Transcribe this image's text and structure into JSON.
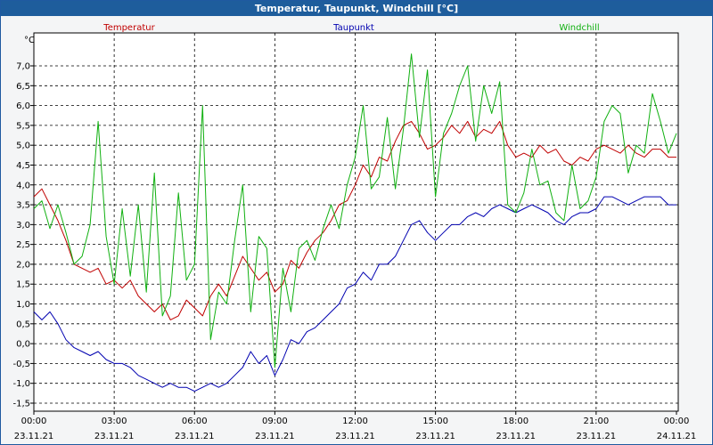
{
  "title": "Temperatur, Taupunkt, Windchill [°C]",
  "chart_data": {
    "type": "line",
    "title": "Temperatur, Taupunkt, Windchill [°C]",
    "ylabel": "°C",
    "ylim": [
      -1.6,
      8.2
    ],
    "yticks": [
      7.0,
      6.5,
      6.0,
      5.5,
      5.0,
      4.5,
      4.0,
      3.5,
      3.0,
      2.5,
      2.0,
      1.5,
      1.0,
      0.5,
      0.0,
      -0.5,
      -1.0,
      -1.5
    ],
    "ytick_labels": [
      "7,0",
      "6,5",
      "6,0",
      "5,5",
      "5,0",
      "4,5",
      "4,0",
      "3,5",
      "3,0",
      "2,5",
      "2,0",
      "1,5",
      "1,0",
      "0,5",
      "0,0",
      "-0,5",
      "-1,0",
      "-1,5"
    ],
    "xlim_hours": [
      0,
      24
    ],
    "xticks": [
      {
        "time": "00:00",
        "date": "23.11.21",
        "hour": 0
      },
      {
        "time": "03:00",
        "date": "23.11.21",
        "hour": 3
      },
      {
        "time": "06:00",
        "date": "23.11.21",
        "hour": 6
      },
      {
        "time": "09:00",
        "date": "23.11.21",
        "hour": 9
      },
      {
        "time": "12:00",
        "date": "23.11.21",
        "hour": 12
      },
      {
        "time": "15:00",
        "date": "23.11.21",
        "hour": 15
      },
      {
        "time": "18:00",
        "date": "23.11.21",
        "hour": 18
      },
      {
        "time": "21:00",
        "date": "23.11.21",
        "hour": 21
      },
      {
        "time": "00:00",
        "date": "24.11.21",
        "hour": 24
      }
    ],
    "grid": true,
    "legend": "top",
    "series": [
      {
        "name": "Temperatur",
        "color": "#c00000",
        "x": [
          0,
          0.3,
          0.6,
          0.9,
          1.2,
          1.5,
          1.8,
          2.1,
          2.4,
          2.7,
          3.0,
          3.3,
          3.6,
          3.9,
          4.2,
          4.5,
          4.8,
          5.1,
          5.4,
          5.7,
          6.0,
          6.3,
          6.6,
          6.9,
          7.2,
          7.5,
          7.8,
          8.1,
          8.4,
          8.7,
          9.0,
          9.3,
          9.6,
          9.9,
          10.2,
          10.5,
          10.8,
          11.1,
          11.4,
          11.7,
          12.0,
          12.3,
          12.6,
          12.9,
          13.2,
          13.5,
          13.8,
          14.1,
          14.4,
          14.7,
          15.0,
          15.3,
          15.6,
          15.9,
          16.2,
          16.5,
          16.8,
          17.1,
          17.4,
          17.7,
          18.0,
          18.3,
          18.6,
          18.9,
          19.2,
          19.5,
          19.8,
          20.1,
          20.4,
          20.7,
          21.0,
          21.3,
          21.6,
          21.9,
          22.2,
          22.5,
          22.8,
          23.1,
          23.4,
          23.7,
          24.0
        ],
        "y": [
          3.7,
          3.9,
          3.5,
          3.1,
          2.6,
          2.0,
          1.9,
          1.8,
          1.9,
          1.5,
          1.6,
          1.4,
          1.6,
          1.2,
          1.0,
          0.8,
          1.0,
          0.6,
          0.7,
          1.1,
          0.9,
          0.7,
          1.2,
          1.5,
          1.2,
          1.7,
          2.2,
          1.9,
          1.6,
          1.8,
          1.3,
          1.5,
          2.1,
          1.9,
          2.3,
          2.6,
          2.8,
          3.1,
          3.5,
          3.6,
          4.0,
          4.5,
          4.2,
          4.7,
          4.6,
          5.1,
          5.5,
          5.6,
          5.3,
          4.9,
          5.0,
          5.2,
          5.5,
          5.3,
          5.6,
          5.2,
          5.4,
          5.3,
          5.6,
          5.0,
          4.7,
          4.8,
          4.7,
          5.0,
          4.8,
          4.9,
          4.6,
          4.5,
          4.7,
          4.6,
          4.9,
          5.0,
          4.9,
          4.8,
          5.0,
          4.8,
          4.7,
          4.9,
          4.9,
          4.7,
          4.7
        ]
      },
      {
        "name": "Taupunkt",
        "color": "#0000b0",
        "x": [
          0,
          0.3,
          0.6,
          0.9,
          1.2,
          1.5,
          1.8,
          2.1,
          2.4,
          2.7,
          3.0,
          3.3,
          3.6,
          3.9,
          4.2,
          4.5,
          4.8,
          5.1,
          5.4,
          5.7,
          6.0,
          6.3,
          6.6,
          6.9,
          7.2,
          7.5,
          7.8,
          8.1,
          8.4,
          8.7,
          9.0,
          9.3,
          9.6,
          9.9,
          10.2,
          10.5,
          10.8,
          11.1,
          11.4,
          11.7,
          12.0,
          12.3,
          12.6,
          12.9,
          13.2,
          13.5,
          13.8,
          14.1,
          14.4,
          14.7,
          15.0,
          15.3,
          15.6,
          15.9,
          16.2,
          16.5,
          16.8,
          17.1,
          17.4,
          17.7,
          18.0,
          18.3,
          18.6,
          18.9,
          19.2,
          19.5,
          19.8,
          20.1,
          20.4,
          20.7,
          21.0,
          21.3,
          21.6,
          21.9,
          22.2,
          22.5,
          22.8,
          23.1,
          23.4,
          23.7,
          24.0
        ],
        "y": [
          0.8,
          0.6,
          0.8,
          0.5,
          0.1,
          -0.1,
          -0.2,
          -0.3,
          -0.2,
          -0.4,
          -0.5,
          -0.5,
          -0.6,
          -0.8,
          -0.9,
          -1.0,
          -1.1,
          -1.0,
          -1.1,
          -1.1,
          -1.2,
          -1.1,
          -1.0,
          -1.1,
          -1.0,
          -0.8,
          -0.6,
          -0.2,
          -0.5,
          -0.3,
          -0.8,
          -0.4,
          0.1,
          0.0,
          0.3,
          0.4,
          0.6,
          0.8,
          1.0,
          1.4,
          1.5,
          1.8,
          1.6,
          2.0,
          2.0,
          2.2,
          2.6,
          3.0,
          3.1,
          2.8,
          2.6,
          2.8,
          3.0,
          3.0,
          3.2,
          3.3,
          3.2,
          3.4,
          3.5,
          3.4,
          3.3,
          3.4,
          3.5,
          3.4,
          3.3,
          3.1,
          3.0,
          3.2,
          3.3,
          3.3,
          3.4,
          3.7,
          3.7,
          3.6,
          3.5,
          3.6,
          3.7,
          3.7,
          3.7,
          3.5,
          3.5
        ]
      },
      {
        "name": "Windchill",
        "color": "#10b010",
        "x": [
          0,
          0.3,
          0.6,
          0.9,
          1.2,
          1.5,
          1.8,
          2.1,
          2.4,
          2.7,
          3.0,
          3.3,
          3.6,
          3.9,
          4.2,
          4.5,
          4.8,
          5.1,
          5.4,
          5.7,
          6.0,
          6.3,
          6.6,
          6.9,
          7.2,
          7.5,
          7.8,
          8.1,
          8.4,
          8.7,
          9.0,
          9.3,
          9.6,
          9.9,
          10.2,
          10.5,
          10.8,
          11.1,
          11.4,
          11.7,
          12.0,
          12.3,
          12.6,
          12.9,
          13.2,
          13.5,
          13.8,
          14.1,
          14.4,
          14.7,
          15.0,
          15.3,
          15.6,
          15.9,
          16.2,
          16.5,
          16.8,
          17.1,
          17.4,
          17.7,
          18.0,
          18.3,
          18.6,
          18.9,
          19.2,
          19.5,
          19.8,
          20.1,
          20.4,
          20.7,
          21.0,
          21.3,
          21.6,
          21.9,
          22.2,
          22.5,
          22.8,
          23.1,
          23.4,
          23.7,
          24.0
        ],
        "y": [
          3.4,
          3.6,
          2.9,
          3.5,
          2.8,
          2.0,
          2.2,
          3.0,
          5.6,
          2.7,
          1.5,
          3.4,
          1.7,
          3.5,
          1.3,
          4.3,
          0.7,
          1.2,
          3.8,
          1.6,
          2.0,
          6.0,
          0.1,
          1.3,
          1.0,
          2.6,
          4.0,
          0.8,
          2.7,
          2.4,
          -0.6,
          1.9,
          0.8,
          2.4,
          2.6,
          2.1,
          2.9,
          3.5,
          2.9,
          4.0,
          4.7,
          6.0,
          3.9,
          4.2,
          5.7,
          3.9,
          5.4,
          7.3,
          5.2,
          6.9,
          3.7,
          5.3,
          5.8,
          6.5,
          7.0,
          5.1,
          6.5,
          5.8,
          6.6,
          3.5,
          3.3,
          3.8,
          4.9,
          4.0,
          4.1,
          3.3,
          3.1,
          4.5,
          3.4,
          3.6,
          4.2,
          5.6,
          6.0,
          5.8,
          4.3,
          5.0,
          4.8,
          6.3,
          5.6,
          4.8,
          5.3
        ]
      }
    ]
  }
}
